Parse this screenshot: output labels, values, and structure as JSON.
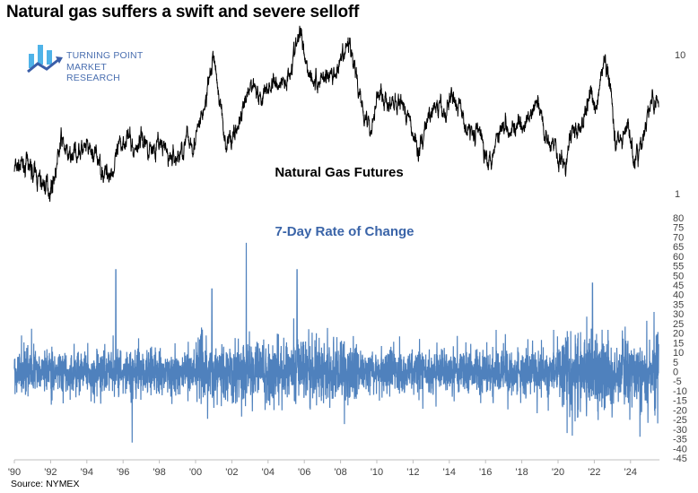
{
  "title": "Natural gas suffers a swift and severe selloff",
  "logo": {
    "line1": "TURNING POINT",
    "line2": "MARKET RESEARCH",
    "color": "#4a6fb0",
    "accent": "#4fb3e8"
  },
  "source": "Source: NYMEX",
  "colors": {
    "price_line": "#000000",
    "roc_line": "#4f81bd",
    "roc_title": "#3a64a8",
    "axis": "#bfbfbf"
  },
  "chart_data": [
    {
      "type": "line",
      "title": "Natural Gas Futures",
      "yscale": "log",
      "ylim": [
        1,
        16
      ],
      "y_ticks": [
        "10",
        "1"
      ],
      "y_tick_values": [
        10,
        1
      ],
      "series": [
        {
          "points": [
            [
              1990.0,
              1.52
            ],
            [
              1990.6,
              1.6
            ],
            [
              1991.0,
              1.45
            ],
            [
              1991.5,
              1.18
            ],
            [
              1992.0,
              1.1
            ],
            [
              1992.3,
              1.5
            ],
            [
              1992.6,
              2.47
            ],
            [
              1993.0,
              1.75
            ],
            [
              1993.5,
              2.1
            ],
            [
              1994.0,
              2.0
            ],
            [
              1994.5,
              1.84
            ],
            [
              1995.0,
              1.4
            ],
            [
              1995.5,
              1.5
            ],
            [
              1995.9,
              2.3
            ],
            [
              1996.2,
              2.7
            ],
            [
              1996.6,
              2.0
            ],
            [
              1997.0,
              2.6
            ],
            [
              1997.5,
              2.1
            ],
            [
              1998.0,
              2.3
            ],
            [
              1998.5,
              1.84
            ],
            [
              1999.0,
              1.8
            ],
            [
              1999.5,
              2.4
            ],
            [
              2000.0,
              2.4
            ],
            [
              2000.5,
              4.2
            ],
            [
              2001.0,
              9.9
            ],
            [
              2001.3,
              5.0
            ],
            [
              2001.7,
              2.2
            ],
            [
              2002.0,
              2.6
            ],
            [
              2002.5,
              3.3
            ],
            [
              2003.0,
              5.5
            ],
            [
              2003.2,
              6.5
            ],
            [
              2003.6,
              4.8
            ],
            [
              2004.0,
              5.8
            ],
            [
              2004.5,
              6.2
            ],
            [
              2005.0,
              6.5
            ],
            [
              2005.8,
              14.5
            ],
            [
              2006.2,
              8.0
            ],
            [
              2006.7,
              6.0
            ],
            [
              2007.0,
              7.2
            ],
            [
              2007.5,
              7.0
            ],
            [
              2008.0,
              8.0
            ],
            [
              2008.5,
              12.7
            ],
            [
              2008.9,
              6.5
            ],
            [
              2009.3,
              4.0
            ],
            [
              2009.7,
              2.8
            ],
            [
              2010.0,
              5.5
            ],
            [
              2010.5,
              4.5
            ],
            [
              2011.0,
              4.2
            ],
            [
              2011.5,
              4.4
            ],
            [
              2012.0,
              2.7
            ],
            [
              2012.3,
              2.0
            ],
            [
              2012.8,
              3.4
            ],
            [
              2013.3,
              4.2
            ],
            [
              2013.8,
              3.6
            ],
            [
              2014.1,
              5.5
            ],
            [
              2014.6,
              4.0
            ],
            [
              2015.0,
              2.9
            ],
            [
              2015.6,
              2.8
            ],
            [
              2016.2,
              1.75
            ],
            [
              2016.8,
              3.0
            ],
            [
              2017.0,
              3.3
            ],
            [
              2017.6,
              3.0
            ],
            [
              2018.0,
              2.8
            ],
            [
              2018.9,
              4.5
            ],
            [
              2019.3,
              2.7
            ],
            [
              2019.8,
              2.3
            ],
            [
              2020.4,
              1.5
            ],
            [
              2020.8,
              3.0
            ],
            [
              2021.2,
              2.7
            ],
            [
              2021.8,
              5.5
            ],
            [
              2022.0,
              4.0
            ],
            [
              2022.6,
              9.0
            ],
            [
              2022.9,
              6.0
            ],
            [
              2023.2,
              2.3
            ],
            [
              2023.6,
              2.6
            ],
            [
              2023.9,
              3.0
            ],
            [
              2024.2,
              1.6
            ],
            [
              2024.6,
              2.2
            ],
            [
              2024.9,
              3.4
            ],
            [
              2025.2,
              4.8
            ],
            [
              2025.3,
              3.4
            ],
            [
              2025.45,
              5.8
            ],
            [
              2025.55,
              4.0
            ]
          ]
        }
      ]
    },
    {
      "type": "line",
      "title": "7-Day Rate of Change",
      "ylim": [
        -45,
        80
      ],
      "y_ticks": [
        "80",
        "75",
        "70",
        "65",
        "60",
        "55",
        "50",
        "45",
        "40",
        "35",
        "30",
        "25",
        "20",
        "15",
        "10",
        "5",
        "0",
        "-5",
        "-10",
        "-15",
        "-20",
        "-25",
        "-30",
        "-35",
        "-40",
        "-45"
      ],
      "y_tick_values": [
        80,
        75,
        70,
        65,
        60,
        55,
        50,
        45,
        40,
        35,
        30,
        25,
        20,
        15,
        10,
        5,
        0,
        -5,
        -10,
        -15,
        -20,
        -25,
        -30,
        -35,
        -40,
        -45
      ],
      "series": [
        {
          "notable_points": [
            [
              1995.6,
              53
            ],
            [
              1996.5,
              -37
            ],
            [
              2000.9,
              43
            ],
            [
              2002.8,
              67
            ],
            [
              2005.6,
              53
            ],
            [
              2020.5,
              -32
            ],
            [
              2021.9,
              46
            ],
            [
              2025.3,
              31
            ],
            [
              2025.5,
              -27
            ]
          ]
        }
      ]
    }
  ],
  "x_axis": {
    "xlim": [
      1990,
      2025.6
    ],
    "ticks": [
      "'90",
      "'92",
      "'94",
      "'96",
      "'98",
      "'00",
      "'02",
      "'04",
      "'06",
      "'08",
      "'10",
      "'12",
      "'14",
      "'16",
      "'18",
      "'20",
      "'22",
      "'24"
    ],
    "tick_values": [
      1990,
      1992,
      1994,
      1996,
      1998,
      2000,
      2002,
      2004,
      2006,
      2008,
      2010,
      2012,
      2014,
      2016,
      2018,
      2020,
      2022,
      2024
    ]
  }
}
